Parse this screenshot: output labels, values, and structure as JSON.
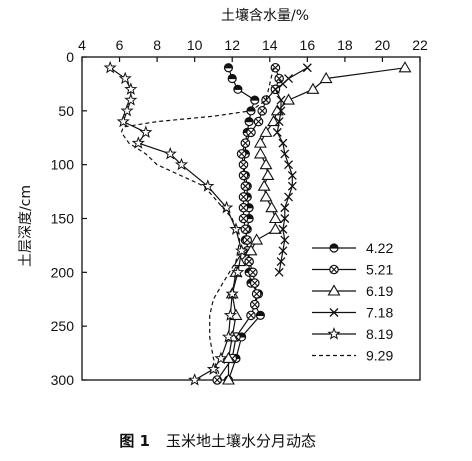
{
  "chart_data": {
    "type": "line",
    "orientation": "depth-profile",
    "title": "",
    "xlabel": "土壤含水量/%",
    "ylabel": "土层深度/cm",
    "xlim": [
      4,
      22
    ],
    "ylim": [
      0,
      300
    ],
    "x_axis_position": "top",
    "y_inverted": true,
    "x_ticks": [
      4,
      6,
      8,
      10,
      12,
      14,
      16,
      18,
      20,
      22
    ],
    "y_ticks": [
      0,
      50,
      100,
      150,
      200,
      250,
      300
    ],
    "grid": false,
    "legend_position": "right",
    "caption_label": "图 1",
    "caption_text": "玉米地土壤水分月动态",
    "series": [
      {
        "name": "4.22",
        "marker": "circle-half",
        "line": "solid",
        "points": [
          [
            11.8,
            10
          ],
          [
            12.0,
            20
          ],
          [
            12.3,
            30
          ],
          [
            13.2,
            40
          ],
          [
            13.0,
            50
          ],
          [
            12.9,
            60
          ],
          [
            12.8,
            70
          ],
          [
            12.7,
            80
          ],
          [
            12.7,
            90
          ],
          [
            12.6,
            100
          ],
          [
            12.7,
            110
          ],
          [
            12.8,
            120
          ],
          [
            12.8,
            130
          ],
          [
            12.9,
            140
          ],
          [
            12.9,
            150
          ],
          [
            12.8,
            160
          ],
          [
            12.7,
            170
          ],
          [
            12.9,
            180
          ],
          [
            12.9,
            190
          ],
          [
            12.9,
            200
          ],
          [
            13.0,
            210
          ],
          [
            13.4,
            220
          ],
          [
            13.2,
            230
          ],
          [
            13.5,
            240
          ],
          [
            12.5,
            260
          ],
          [
            12.2,
            280
          ],
          [
            11.8,
            300
          ]
        ]
      },
      {
        "name": "5.21",
        "marker": "circle-cross",
        "line": "solid",
        "points": [
          [
            14.3,
            10
          ],
          [
            14.5,
            20
          ],
          [
            14.3,
            30
          ],
          [
            13.8,
            40
          ],
          [
            13.6,
            50
          ],
          [
            13.4,
            60
          ],
          [
            13.0,
            70
          ],
          [
            12.7,
            80
          ],
          [
            12.5,
            90
          ],
          [
            12.6,
            100
          ],
          [
            12.6,
            110
          ],
          [
            12.7,
            120
          ],
          [
            12.6,
            130
          ],
          [
            12.6,
            140
          ],
          [
            12.6,
            150
          ],
          [
            12.7,
            160
          ],
          [
            12.8,
            170
          ],
          [
            12.8,
            180
          ],
          [
            12.9,
            190
          ],
          [
            13.1,
            200
          ],
          [
            13.2,
            210
          ],
          [
            13.3,
            220
          ],
          [
            13.2,
            230
          ],
          [
            13.0,
            240
          ],
          [
            12.2,
            260
          ],
          [
            12.0,
            280
          ],
          [
            11.2,
            300
          ]
        ]
      },
      {
        "name": "6.19",
        "marker": "triangle-open",
        "line": "solid",
        "points": [
          [
            21.2,
            10
          ],
          [
            17.0,
            20
          ],
          [
            16.3,
            30
          ],
          [
            15.0,
            40
          ],
          [
            14.4,
            50
          ],
          [
            14.2,
            60
          ],
          [
            13.8,
            70
          ],
          [
            13.5,
            80
          ],
          [
            13.5,
            90
          ],
          [
            13.8,
            100
          ],
          [
            13.9,
            110
          ],
          [
            13.7,
            120
          ],
          [
            13.8,
            130
          ],
          [
            14.1,
            140
          ],
          [
            14.3,
            150
          ],
          [
            14.3,
            160
          ],
          [
            13.3,
            170
          ],
          [
            13.0,
            180
          ],
          [
            12.4,
            190
          ],
          [
            12.2,
            200
          ],
          [
            12.0,
            220
          ],
          [
            12.2,
            240
          ],
          [
            12.0,
            260
          ],
          [
            11.8,
            280
          ],
          [
            11.8,
            300
          ]
        ]
      },
      {
        "name": "7.18",
        "marker": "cross",
        "line": "solid",
        "points": [
          [
            16.0,
            10
          ],
          [
            15.0,
            20
          ],
          [
            14.7,
            25
          ],
          [
            14.3,
            30
          ],
          [
            14.6,
            40
          ],
          [
            14.6,
            50
          ],
          [
            14.5,
            60
          ],
          [
            14.4,
            70
          ],
          [
            14.7,
            80
          ],
          [
            14.8,
            90
          ],
          [
            15.0,
            100
          ],
          [
            15.2,
            110
          ],
          [
            15.2,
            120
          ],
          [
            15.0,
            130
          ],
          [
            14.8,
            140
          ],
          [
            14.8,
            150
          ],
          [
            14.7,
            160
          ],
          [
            14.8,
            170
          ],
          [
            14.7,
            180
          ],
          [
            14.6,
            190
          ],
          [
            14.5,
            200
          ]
        ]
      },
      {
        "name": "8.19",
        "marker": "star-open",
        "line": "solid",
        "points": [
          [
            5.5,
            10
          ],
          [
            6.3,
            20
          ],
          [
            6.6,
            30
          ],
          [
            6.6,
            40
          ],
          [
            6.4,
            50
          ],
          [
            6.2,
            60
          ],
          [
            7.4,
            70
          ],
          [
            7.0,
            80
          ],
          [
            8.7,
            90
          ],
          [
            9.3,
            100
          ],
          [
            10.7,
            120
          ],
          [
            11.7,
            140
          ],
          [
            12.2,
            160
          ],
          [
            12.5,
            180
          ],
          [
            12.3,
            200
          ],
          [
            12.0,
            220
          ],
          [
            11.9,
            240
          ],
          [
            11.8,
            260
          ],
          [
            11.4,
            280
          ],
          [
            11.0,
            290
          ],
          [
            10.0,
            300
          ]
        ]
      },
      {
        "name": "9.29",
        "marker": "none",
        "line": "dashed",
        "points": [
          [
            14.2,
            10
          ],
          [
            13.8,
            40
          ],
          [
            13.0,
            50
          ],
          [
            11.0,
            55
          ],
          [
            8.0,
            60
          ],
          [
            6.2,
            65
          ],
          [
            6.1,
            70
          ],
          [
            6.5,
            80
          ],
          [
            7.4,
            90
          ],
          [
            8.0,
            100
          ],
          [
            10.5,
            120
          ],
          [
            11.5,
            140
          ],
          [
            12.0,
            150
          ],
          [
            12.4,
            170
          ],
          [
            12.2,
            190
          ],
          [
            11.5,
            210
          ],
          [
            11.0,
            225
          ],
          [
            10.8,
            240
          ],
          [
            10.8,
            260
          ],
          [
            11.0,
            280
          ],
          [
            11.4,
            300
          ]
        ]
      }
    ]
  }
}
